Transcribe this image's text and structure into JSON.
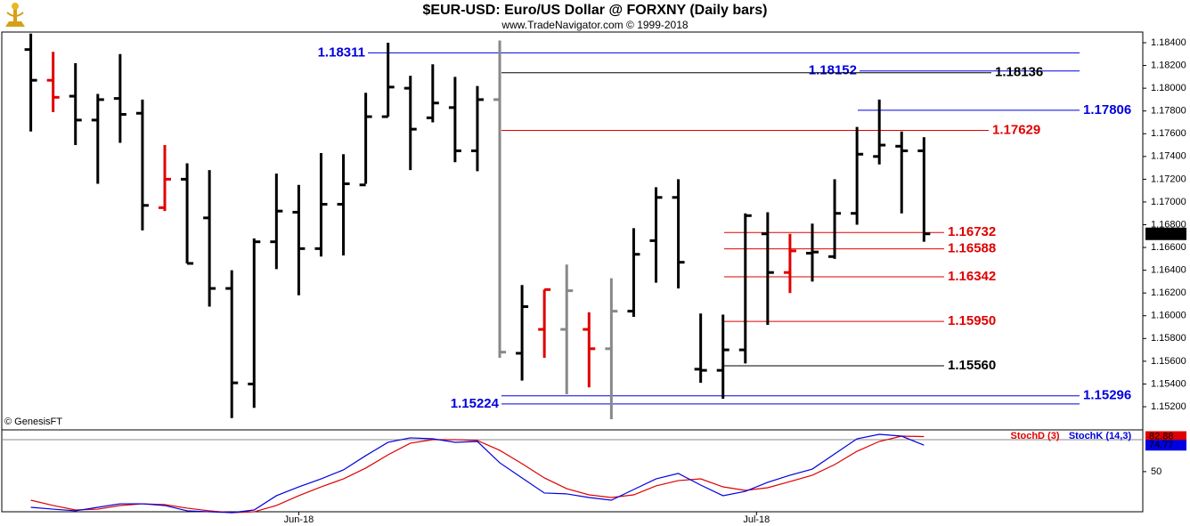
{
  "chart_data": [
    {
      "type": "ohlc",
      "title": "$EUR-USD:  Euro/US Dollar @ FORXNY  (Daily bars)",
      "subtitle": "www.TradeNavigator.com © 1999-2018",
      "source": "© GenesisFT",
      "open": [
        1.1834,
        1.1807,
        1.1793,
        1.1772,
        1.1791,
        1.1778,
        1.1695,
        1.172,
        1.1686,
        1.1624,
        1.154,
        1.1665,
        1.1691,
        1.1659,
        1.1698,
        1.1715,
        1.1775,
        1.18,
        1.1774,
        1.1783,
        1.1745,
        1.179,
        1.1567,
        1.1588,
        1.1588,
        1.1588,
        1.1571,
        1.1604,
        1.1666,
        1.1704,
        1.1553,
        1.1552,
        1.157,
        1.1672,
        1.1638,
        1.1655,
        1.1652,
        1.169,
        1.174,
        1.1749,
        1.1745
      ],
      "high": [
        1.1848,
        1.1832,
        1.1822,
        1.1795,
        1.183,
        1.179,
        1.175,
        1.1734,
        1.1728,
        1.164,
        1.1668,
        1.1725,
        1.1715,
        1.1743,
        1.1742,
        1.1796,
        1.184,
        1.1811,
        1.1821,
        1.181,
        1.1802,
        1.1842,
        1.1627,
        1.1623,
        1.1645,
        1.1603,
        1.1633,
        1.1677,
        1.1713,
        1.172,
        1.1602,
        1.1601,
        1.169,
        1.1691,
        1.1672,
        1.1681,
        1.172,
        1.1766,
        1.179,
        1.1762,
        1.1757
      ],
      "low": [
        1.1762,
        1.1779,
        1.175,
        1.1716,
        1.1752,
        1.1675,
        1.1692,
        1.1646,
        1.1608,
        1.151,
        1.1519,
        1.1641,
        1.1618,
        1.1652,
        1.1653,
        1.1716,
        1.1775,
        1.1728,
        1.177,
        1.1735,
        1.1727,
        1.1563,
        1.1543,
        1.1563,
        1.1531,
        1.1537,
        1.1509,
        1.1599,
        1.1629,
        1.1624,
        1.1541,
        1.1527,
        1.1558,
        1.1592,
        1.162,
        1.163,
        1.165,
        1.168,
        1.1733,
        1.169,
        1.1665
      ],
      "close": [
        1.1807,
        1.1792,
        1.1772,
        1.179,
        1.1777,
        1.1697,
        1.172,
        1.1646,
        1.1624,
        1.1541,
        1.1665,
        1.1692,
        1.1659,
        1.1698,
        1.1716,
        1.1775,
        1.1801,
        1.1764,
        1.1787,
        1.1745,
        1.179,
        1.1568,
        1.1608,
        1.1623,
        1.1622,
        1.1571,
        1.1604,
        1.1654,
        1.1704,
        1.1647,
        1.1552,
        1.157,
        1.1688,
        1.1638,
        1.1657,
        1.1656,
        1.169,
        1.1742,
        1.175,
        1.1745,
        1.1672
      ],
      "colors": [
        "#000",
        "#e00000",
        "#000",
        "#000",
        "#000",
        "#000",
        "#e00000",
        "#000",
        "#000",
        "#000",
        "#000",
        "#000",
        "#000",
        "#000",
        "#000",
        "#000",
        "#000",
        "#000",
        "#000",
        "#000",
        "#000",
        "#888",
        "#000",
        "#e00000",
        "#888",
        "#e00000",
        "#888",
        "#000",
        "#000",
        "#000",
        "#000",
        "#000",
        "#000",
        "#000",
        "#e00000",
        "#000",
        "#000",
        "#000",
        "#000",
        "#000",
        "#000"
      ],
      "xlim": [
        -1.3,
        49.8
      ],
      "ylim": [
        1.152,
        1.184
      ],
      "yticks": [
        {
          "value": 1.152,
          "label": "1.15200"
        },
        {
          "value": 1.154,
          "label": "1.15400"
        },
        {
          "value": 1.156,
          "label": "1.15600"
        },
        {
          "value": 1.158,
          "label": "1.15800"
        },
        {
          "value": 1.16,
          "label": "1.16000"
        },
        {
          "value": 1.162,
          "label": "1.16200"
        },
        {
          "value": 1.164,
          "label": "1.16400"
        },
        {
          "value": 1.166,
          "label": "1.16600"
        },
        {
          "value": 1.168,
          "label": "1.16800"
        },
        {
          "value": 1.17,
          "label": "1.17000"
        },
        {
          "value": 1.172,
          "label": "1.17200"
        },
        {
          "value": 1.174,
          "label": "1.17400"
        },
        {
          "value": 1.176,
          "label": "1.17600"
        },
        {
          "value": 1.178,
          "label": "1.17800"
        },
        {
          "value": 1.18,
          "label": "1.18000"
        },
        {
          "value": 1.182,
          "label": "1.18200"
        },
        {
          "value": 1.184,
          "label": "1.18400"
        }
      ],
      "last_price": {
        "value": 1.1672,
        "label": "1.16720"
      },
      "levels": [
        {
          "value": 1.18311,
          "color": "#0000e0"
        },
        {
          "value": 1.18152,
          "color": "#0000e0"
        },
        {
          "value": 1.18136,
          "color": "#000"
        },
        {
          "value": 1.17806,
          "color": "#0000e0"
        },
        {
          "value": 1.17629,
          "color": "#e00000"
        },
        {
          "value": 1.16732,
          "color": "#e00000"
        },
        {
          "value": 1.16588,
          "color": "#e00000"
        },
        {
          "value": 1.16342,
          "color": "#e00000"
        },
        {
          "value": 1.1595,
          "label": "1.15950",
          "color": "#e00000"
        },
        {
          "value": 1.1556,
          "label": "1.15560",
          "color": "#000"
        },
        {
          "value": 1.15296,
          "color": "#0000e0"
        },
        {
          "value": 1.15224,
          "color": "#0000e0"
        }
      ]
    },
    {
      "type": "line",
      "series": [
        {
          "name": "StochD (3)",
          "color": "#e00000",
          "values": [
            23.2,
            18.2,
            14,
            14.8,
            18.2,
            19.8,
            19,
            15.7,
            13.2,
            11.5,
            12.3,
            18.2,
            27.4,
            35.7,
            43.2,
            53.3,
            65.8,
            76.7,
            80,
            80,
            79.2,
            70,
            57.4,
            44.1,
            34,
            28.2,
            25.7,
            28.2,
            36.6,
            41.6,
            43.2,
            35.7,
            32.4,
            34.9,
            40.7,
            46.6,
            56.6,
            69.1,
            78.3,
            83.3,
            82.88
          ]
        },
        {
          "name": "StochK (14,3)",
          "color": "#0000e0",
          "values": [
            16.5,
            14.8,
            13.2,
            16.5,
            19.8,
            19.8,
            18.2,
            13.2,
            12.3,
            11.5,
            14,
            27.4,
            35.7,
            43.2,
            51.6,
            65,
            77.5,
            81.7,
            80.8,
            77.5,
            78.3,
            58.3,
            44.1,
            29.9,
            29.1,
            25.7,
            23.2,
            33.2,
            43.2,
            48.3,
            37.4,
            27.4,
            31.5,
            39.9,
            46.6,
            52.4,
            66.6,
            80.8,
            85,
            83.3,
            74.77
          ]
        }
      ],
      "xlim": [
        -1.3,
        49.8
      ],
      "xticks": [
        {
          "value": 12,
          "label": "Jun-18"
        },
        {
          "value": 32.5,
          "label": "Jul-18"
        }
      ],
      "ylim": [
        14,
        90
      ],
      "yticks": [
        50
      ],
      "reference_lines": [
        80
      ]
    }
  ]
}
